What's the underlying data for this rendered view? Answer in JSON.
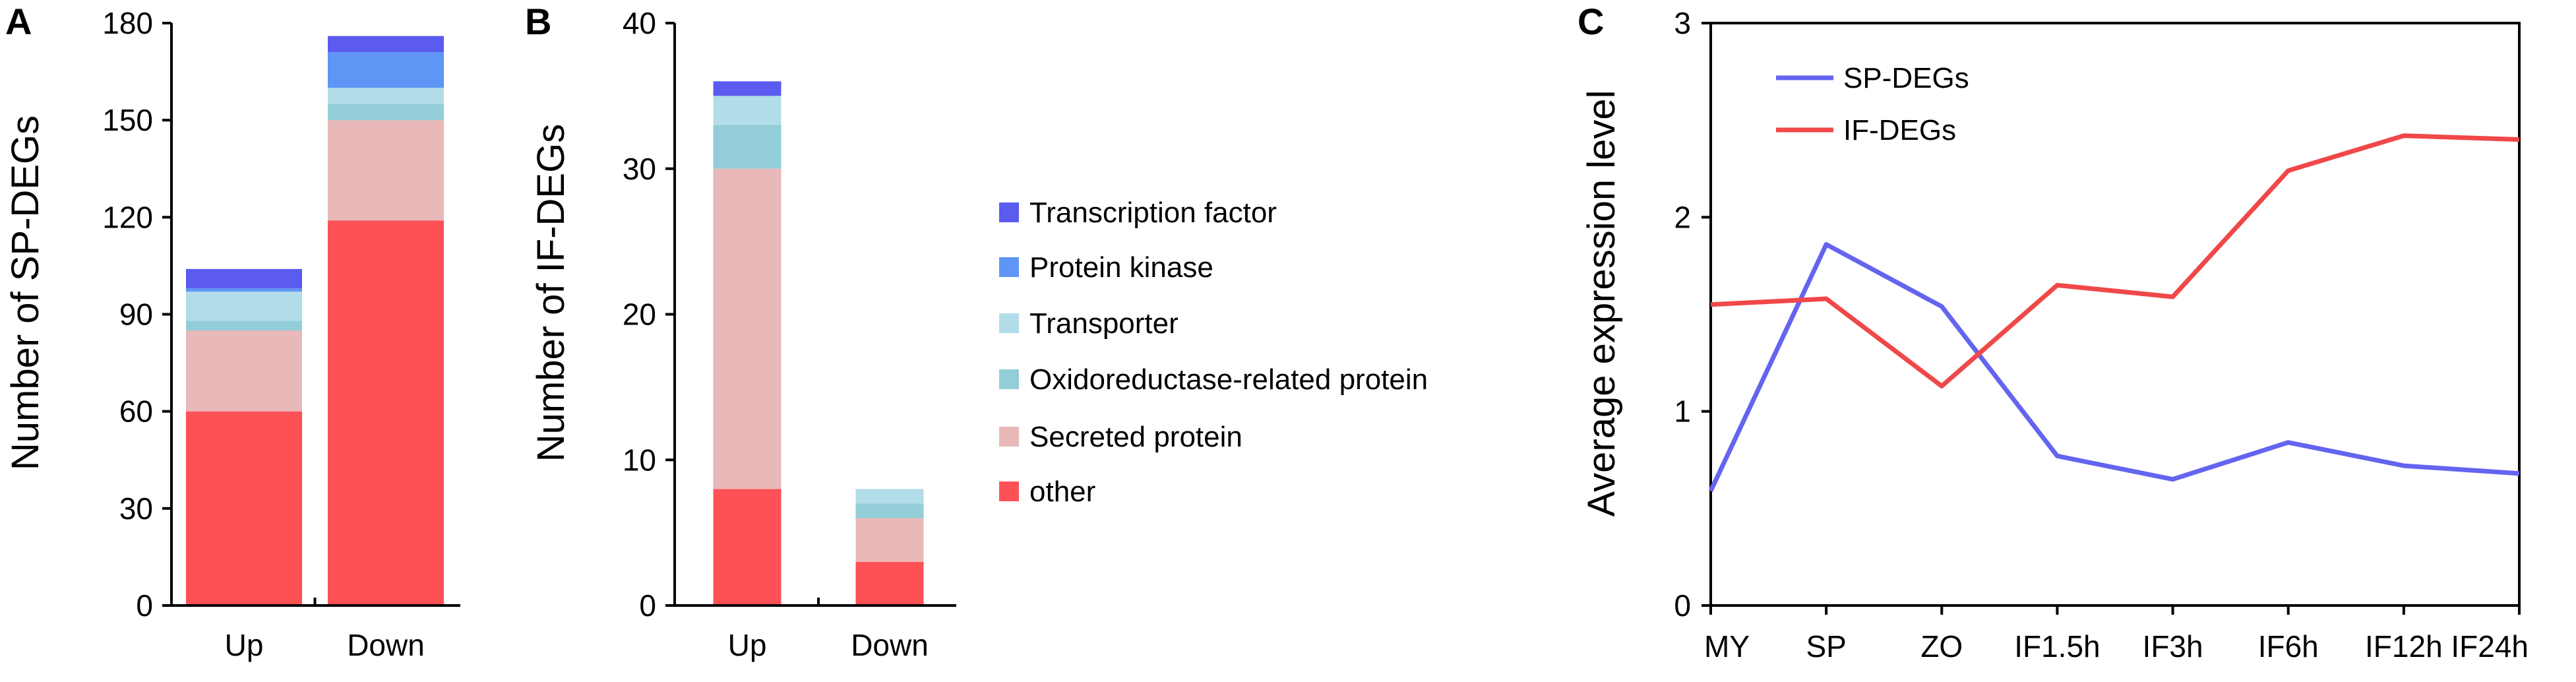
{
  "panels": {
    "a": "A",
    "b": "B",
    "c": "C"
  },
  "legend_items": [
    {
      "label": "Transcription factor",
      "color": "#5b5bf0"
    },
    {
      "label": "Protein kinase",
      "color": "#5f96f5"
    },
    {
      "label": "Transporter",
      "color": "#b2dde8"
    },
    {
      "label": "Oxidoreductase-related protein",
      "color": "#92cdd8"
    },
    {
      "label": "Secreted protein",
      "color": "#e9b8b8"
    },
    {
      "label": "other",
      "color": "#fd5156"
    }
  ],
  "chart_data": [
    {
      "type": "bar",
      "stacked": true,
      "panel": "A",
      "ylabel": "Number of SP-DEGs",
      "categories": [
        "Up",
        "Down"
      ],
      "ylim": [
        0,
        180
      ],
      "yticks": [
        "0",
        "30",
        "60",
        "90",
        "120",
        "150",
        "180"
      ],
      "series": [
        {
          "name": "other",
          "values": [
            60,
            119
          ]
        },
        {
          "name": "Secreted protein",
          "values": [
            25,
            31
          ]
        },
        {
          "name": "Oxidoreductase-related protein",
          "values": [
            3,
            5
          ]
        },
        {
          "name": "Transporter",
          "values": [
            9,
            5
          ]
        },
        {
          "name": "Protein kinase",
          "values": [
            1,
            11
          ]
        },
        {
          "name": "Transcription factor",
          "values": [
            6,
            5
          ]
        }
      ]
    },
    {
      "type": "bar",
      "stacked": true,
      "panel": "B",
      "ylabel": "Number of IF-DEGs",
      "categories": [
        "Up",
        "Down"
      ],
      "ylim": [
        0,
        40
      ],
      "yticks": [
        "0",
        "10",
        "20",
        "30",
        "40"
      ],
      "series": [
        {
          "name": "other",
          "values": [
            8,
            3
          ]
        },
        {
          "name": "Secreted protein",
          "values": [
            22,
            3
          ]
        },
        {
          "name": "Oxidoreductase-related protein",
          "values": [
            3,
            1
          ]
        },
        {
          "name": "Transporter",
          "values": [
            2,
            1
          ]
        },
        {
          "name": "Protein kinase",
          "values": [
            0,
            0
          ]
        },
        {
          "name": "Transcription factor",
          "values": [
            1,
            0
          ]
        }
      ],
      "legend": "right"
    },
    {
      "type": "line",
      "panel": "C",
      "ylabel": "Average expression level",
      "categories": [
        "MY",
        "SP",
        "ZO",
        "IF1.5h",
        "IF3h",
        "IF6h",
        "IF12h",
        "IF24h"
      ],
      "ylim": [
        0,
        3
      ],
      "yticks": [
        "0",
        "1",
        "2",
        "3"
      ],
      "series": [
        {
          "name": "SP-DEGs",
          "color": "#6464f0",
          "values": [
            0.59,
            1.86,
            1.54,
            0.77,
            0.65,
            0.84,
            0.72,
            0.68
          ]
        },
        {
          "name": "IF-DEGs",
          "color": "#f04848",
          "values": [
            1.55,
            1.58,
            1.13,
            1.65,
            1.59,
            2.24,
            2.42,
            2.4
          ]
        }
      ],
      "legend": "top-left"
    }
  ]
}
